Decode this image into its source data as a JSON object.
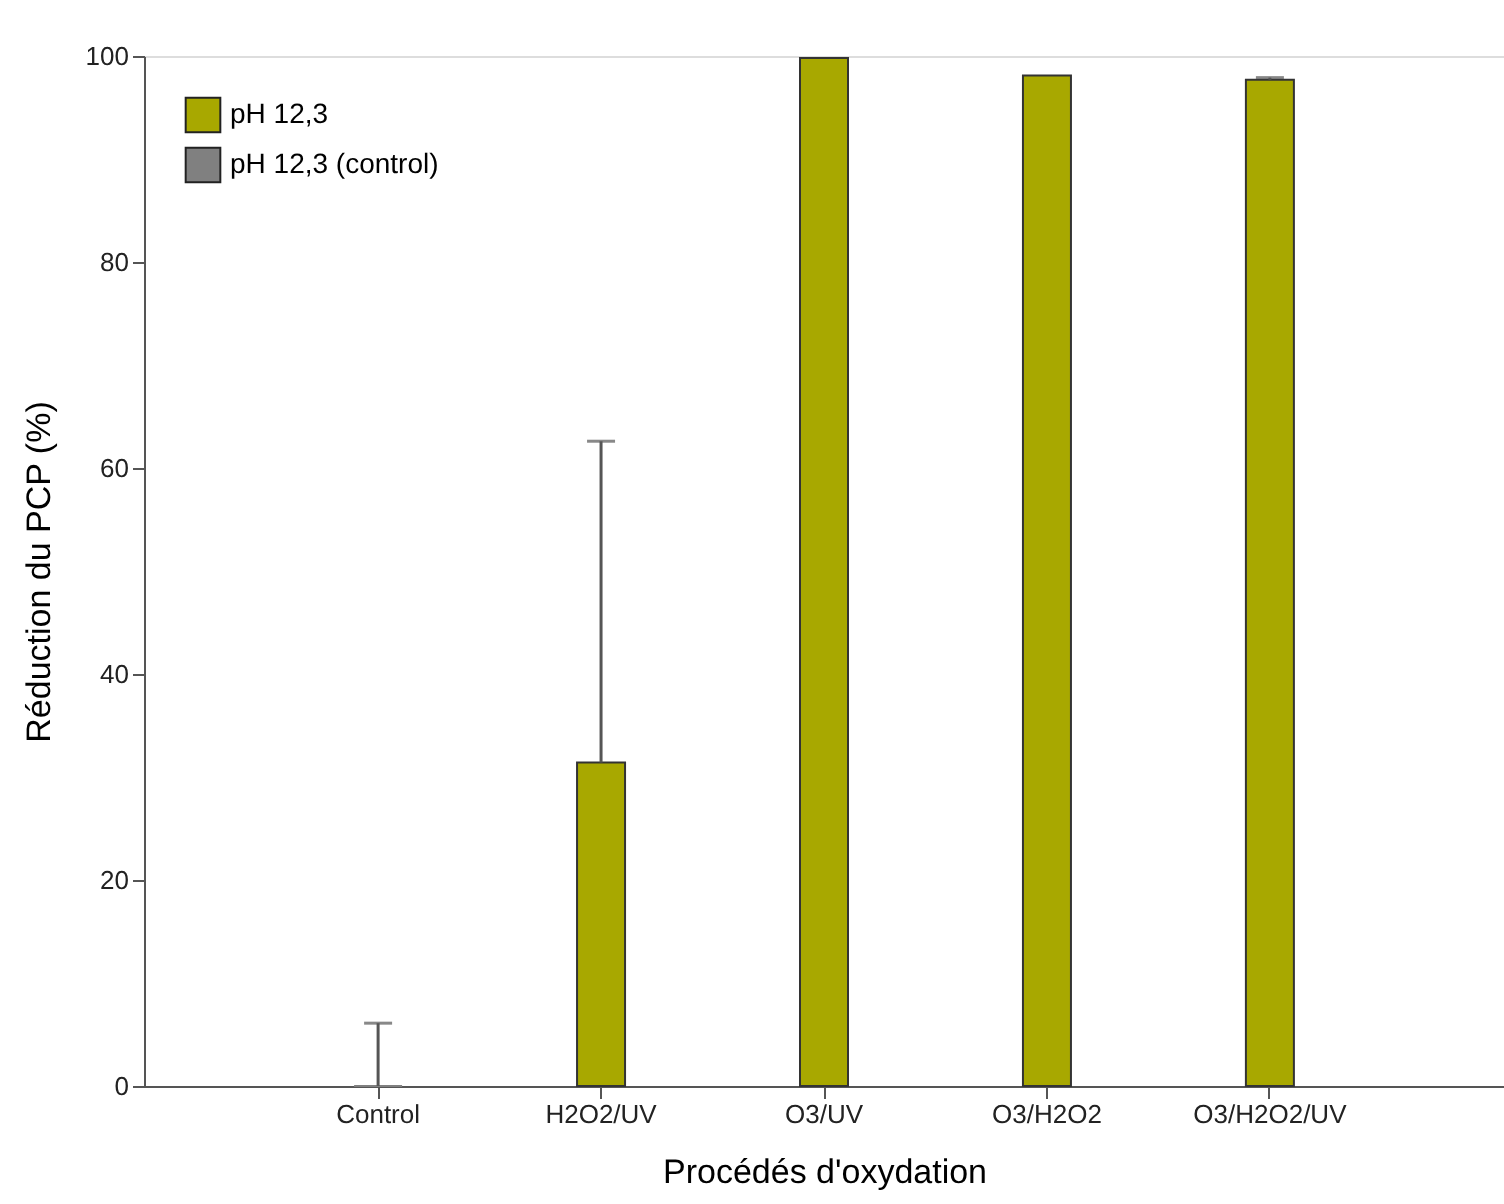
{
  "chart_data": {
    "type": "bar",
    "xlabel": "Procédés d'oxydation",
    "ylabel": "Réduction du PCP (%)",
    "categories": [
      "Control",
      "H2O2/UV",
      "O3/UV",
      "O3/H2O2",
      "O3/H2O2/UV"
    ],
    "series": [
      {
        "name": "pH 12,3",
        "color": "#a8a800",
        "values": [
          null,
          31.4,
          99.8,
          98.1,
          97.7
        ],
        "errors": [
          null,
          [
            31.4,
            62.6
          ],
          null,
          null,
          [
            97.7,
            97.9
          ]
        ]
      },
      {
        "name": "pH 12,3 (control)",
        "color": "#808080",
        "values": [
          0,
          null,
          null,
          null,
          null
        ],
        "errors": [
          [
            0,
            6.1
          ],
          null,
          null,
          null,
          null
        ]
      }
    ],
    "ylim": [
      0,
      100
    ],
    "yticks": [
      0,
      20,
      40,
      60,
      80,
      100
    ],
    "grid": false,
    "legend": "top left"
  }
}
